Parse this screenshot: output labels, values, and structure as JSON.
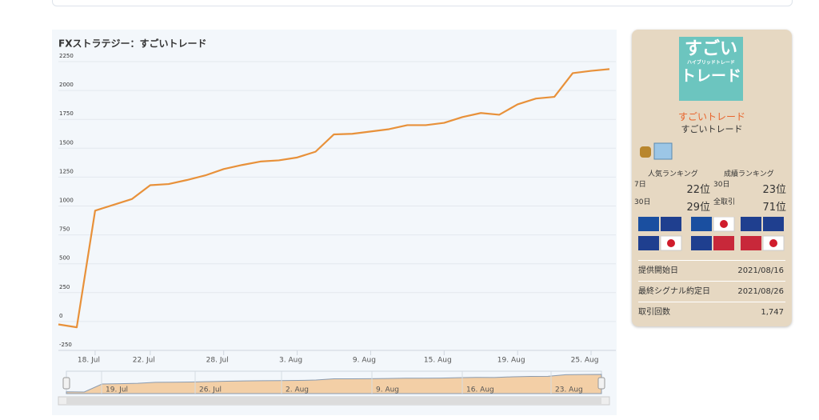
{
  "chart_data": {
    "type": "line",
    "title": "FXストラテジー：すごいトレード",
    "color": "#e8913a",
    "categories": [
      null,
      null,
      "18. Jul",
      null,
      null,
      "22. Jul",
      null,
      null,
      null,
      "28. Jul",
      null,
      null,
      null,
      "3. Aug",
      null,
      null,
      null,
      "9. Aug",
      null,
      null,
      null,
      "15. Aug",
      null,
      null,
      null,
      "19. Aug",
      null,
      null,
      null,
      "25. Aug",
      null
    ],
    "values": [
      -25,
      -50,
      960,
      1010,
      1060,
      1180,
      1190,
      1225,
      1265,
      1320,
      1355,
      1385,
      1395,
      1420,
      1470,
      1620,
      1625,
      1645,
      1665,
      1700,
      1700,
      1720,
      1770,
      1805,
      1790,
      1880,
      1930,
      1945,
      2150,
      2170,
      2185
    ],
    "ylim": [
      -250,
      2250
    ],
    "yticks": [
      -250,
      0,
      250,
      500,
      750,
      1000,
      1250,
      1500,
      1750,
      2000,
      2250
    ],
    "grid": true,
    "navigator_labels": [
      "19. Jul",
      "26. Jul",
      "2. Aug",
      "9. Aug",
      "16. Aug",
      "23. Aug"
    ]
  },
  "sidebar": {
    "logo": {
      "top": "すごい",
      "middle": "ハイブリッドトレード",
      "bottom": "トレード"
    },
    "name": "すごいトレード",
    "author": "すごいトレード",
    "ranking": {
      "popular": "人気ランキング",
      "performance": "成績ランキング",
      "rows": [
        [
          "7日",
          "22位",
          "30日",
          "23位"
        ],
        [
          "30日",
          "29位",
          "全取引",
          "71位"
        ]
      ]
    },
    "info": [
      [
        "提供開始日",
        "2021/08/16"
      ],
      [
        "最終シグナル約定日",
        "2021/08/26"
      ],
      [
        "取引回数",
        "1,747"
      ]
    ]
  }
}
